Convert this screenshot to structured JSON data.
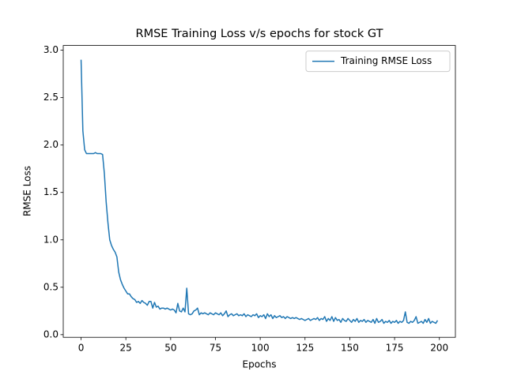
{
  "chart_data": {
    "type": "line",
    "title": "RMSE Training Loss v/s epochs for stock GT",
    "x_label": "Epochs",
    "y_label": "RMSE Loss",
    "x": [
      0,
      1,
      2,
      3,
      4,
      5,
      6,
      7,
      8,
      9,
      10,
      11,
      12,
      13,
      14,
      15,
      16,
      17,
      18,
      19,
      20,
      21,
      22,
      23,
      24,
      25,
      26,
      27,
      28,
      29,
      30,
      31,
      32,
      33,
      34,
      35,
      36,
      37,
      38,
      39,
      40,
      41,
      42,
      43,
      44,
      45,
      46,
      47,
      48,
      49,
      50,
      51,
      52,
      53,
      54,
      55,
      56,
      57,
      58,
      59,
      60,
      61,
      62,
      63,
      64,
      65,
      66,
      67,
      68,
      69,
      70,
      71,
      72,
      73,
      74,
      75,
      76,
      77,
      78,
      79,
      80,
      81,
      82,
      83,
      84,
      85,
      86,
      87,
      88,
      89,
      90,
      91,
      92,
      93,
      94,
      95,
      96,
      97,
      98,
      99,
      100,
      101,
      102,
      103,
      104,
      105,
      106,
      107,
      108,
      109,
      110,
      111,
      112,
      113,
      114,
      115,
      116,
      117,
      118,
      119,
      120,
      121,
      122,
      123,
      124,
      125,
      126,
      127,
      128,
      129,
      130,
      131,
      132,
      133,
      134,
      135,
      136,
      137,
      138,
      139,
      140,
      141,
      142,
      143,
      144,
      145,
      146,
      147,
      148,
      149,
      150,
      151,
      152,
      153,
      154,
      155,
      156,
      157,
      158,
      159,
      160,
      161,
      162,
      163,
      164,
      165,
      166,
      167,
      168,
      169,
      170,
      171,
      172,
      173,
      174,
      175,
      176,
      177,
      178,
      179,
      180,
      181,
      182,
      183,
      184,
      185,
      186,
      187,
      188,
      189,
      190,
      191,
      192,
      193,
      194,
      195,
      196,
      197,
      198,
      199
    ],
    "series": [
      {
        "name": "Training RMSE Loss",
        "color": "#1f77b4",
        "values": [
          2.9,
          2.15,
          1.95,
          1.91,
          1.91,
          1.91,
          1.91,
          1.91,
          1.92,
          1.91,
          1.91,
          1.91,
          1.9,
          1.7,
          1.4,
          1.18,
          1.0,
          0.94,
          0.9,
          0.87,
          0.82,
          0.66,
          0.58,
          0.53,
          0.49,
          0.46,
          0.43,
          0.43,
          0.4,
          0.38,
          0.37,
          0.34,
          0.35,
          0.33,
          0.36,
          0.34,
          0.33,
          0.31,
          0.35,
          0.35,
          0.28,
          0.34,
          0.29,
          0.3,
          0.27,
          0.28,
          0.28,
          0.27,
          0.28,
          0.27,
          0.26,
          0.27,
          0.26,
          0.23,
          0.33,
          0.25,
          0.24,
          0.28,
          0.24,
          0.49,
          0.22,
          0.21,
          0.22,
          0.25,
          0.26,
          0.28,
          0.21,
          0.23,
          0.22,
          0.23,
          0.22,
          0.21,
          0.23,
          0.22,
          0.21,
          0.23,
          0.22,
          0.21,
          0.23,
          0.2,
          0.22,
          0.25,
          0.19,
          0.21,
          0.22,
          0.2,
          0.21,
          0.22,
          0.2,
          0.21,
          0.2,
          0.22,
          0.19,
          0.21,
          0.2,
          0.19,
          0.21,
          0.2,
          0.22,
          0.18,
          0.2,
          0.19,
          0.21,
          0.17,
          0.22,
          0.19,
          0.21,
          0.17,
          0.2,
          0.18,
          0.19,
          0.2,
          0.18,
          0.19,
          0.17,
          0.19,
          0.18,
          0.17,
          0.18,
          0.17,
          0.18,
          0.17,
          0.16,
          0.17,
          0.16,
          0.15,
          0.16,
          0.17,
          0.15,
          0.16,
          0.17,
          0.16,
          0.18,
          0.15,
          0.17,
          0.16,
          0.19,
          0.14,
          0.17,
          0.15,
          0.19,
          0.14,
          0.18,
          0.15,
          0.16,
          0.13,
          0.17,
          0.15,
          0.14,
          0.17,
          0.15,
          0.13,
          0.16,
          0.14,
          0.17,
          0.13,
          0.15,
          0.14,
          0.16,
          0.13,
          0.15,
          0.14,
          0.13,
          0.16,
          0.12,
          0.17,
          0.13,
          0.14,
          0.16,
          0.12,
          0.14,
          0.13,
          0.15,
          0.12,
          0.14,
          0.13,
          0.15,
          0.12,
          0.14,
          0.13,
          0.15,
          0.24,
          0.13,
          0.12,
          0.14,
          0.13,
          0.15,
          0.19,
          0.12,
          0.13,
          0.14,
          0.12,
          0.16,
          0.13,
          0.17,
          0.12,
          0.14,
          0.13,
          0.12,
          0.15
        ]
      }
    ],
    "xlim": [
      -9.95,
      208.95
    ],
    "xticks": [
      0,
      25,
      50,
      75,
      100,
      125,
      150,
      175,
      200
    ],
    "ylim": [
      -0.028,
      3.05
    ],
    "yticks": [
      {
        "value": 0,
        "label": "0.0"
      },
      0.5,
      {
        "value": 1,
        "label": "1.0"
      },
      1.5,
      {
        "value": 2,
        "label": "2.0"
      },
      2.5,
      {
        "value": 3,
        "label": "3.0"
      }
    ],
    "legend": "upper right"
  }
}
